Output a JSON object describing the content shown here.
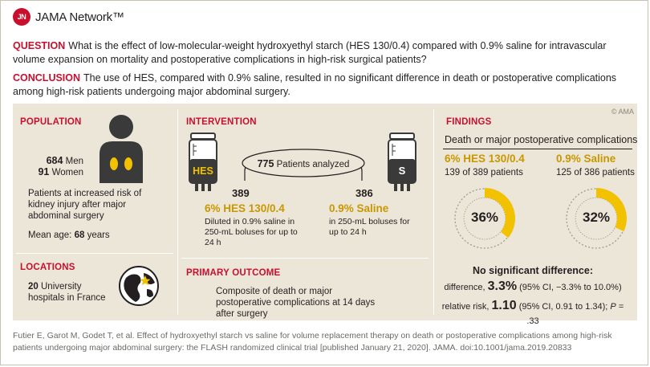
{
  "brand": {
    "badge": "JN",
    "name": "JAMA Network™"
  },
  "question": {
    "label": "QUESTION",
    "text": "What is the effect of low-molecular-weight hydroxyethyl starch (HES 130/0.4) compared with 0.9% saline for intravascular volume expansion on mortality and postoperative complications in high-risk surgical patients?"
  },
  "conclusion": {
    "label": "CONCLUSION",
    "text": "The use of HES, compared with 0.9% saline, resulted in no significant difference in death or postoperative complications among high-risk patients undergoing major abdominal surgery."
  },
  "copyright": "© AMA",
  "population": {
    "title": "POPULATION",
    "men_count": "684",
    "men_label": "Men",
    "women_count": "91",
    "women_label": "Women",
    "description": "Patients at increased risk of kidney injury after major abdominal surgery",
    "age_label": "Mean age:",
    "age_value": "68",
    "age_unit": "years"
  },
  "locations": {
    "title": "LOCATIONS",
    "count": "20",
    "text": "University hospitals in France"
  },
  "intervention": {
    "title": "INTERVENTION",
    "bag_left_label": "HES",
    "bag_right_label": "S",
    "total_count": "775",
    "total_label": "Patients analyzed",
    "left": {
      "n": "389",
      "name": "6% HES 130/0.4",
      "details": "Diluted in 0.9% saline in 250-mL boluses for up to 24 h"
    },
    "right": {
      "n": "386",
      "name": "0.9% Saline",
      "details": "in 250-mL boluses for up to 24 h"
    }
  },
  "primary_outcome": {
    "title": "PRIMARY OUTCOME",
    "text": "Composite of death or major postoperative complications at 14 days after surgery"
  },
  "findings": {
    "title": "FINDINGS",
    "subtitle": "Death or major postoperative complications",
    "groups": [
      {
        "name": "6% HES 130/0.4",
        "count_text": "139 of 389 patients",
        "percent_label": "36%",
        "fraction": 0.36
      },
      {
        "name": "0.9% Saline",
        "count_text": "125 of 386 patients",
        "percent_label": "32%",
        "fraction": 0.32
      }
    ],
    "no_sig": "No significant difference:",
    "diff_label": "difference,",
    "diff_value": "3.3%",
    "diff_ci": "(95% CI, −3.3% to 10.0%)",
    "rr_label": "relative risk,",
    "rr_value": "1.10",
    "rr_ci": "(95% CI, 0.91 to 1.34);",
    "p_label": "P",
    "p_value": "= .33"
  },
  "colors": {
    "accent_red": "#c8102e",
    "gold": "#f2c200",
    "panel_bg": "#ece6d9"
  },
  "citation": "Futier E, Garot M, Godet T, et al. Effect of hydroxyethyl starch vs saline for volume replacement therapy on death or postoperative complications among high-risk patients undergoing major abdominal surgery: the FLASH randomized clinical trial [published January 21, 2020]. JAMA. doi:10.1001/jama.2019.20833"
}
